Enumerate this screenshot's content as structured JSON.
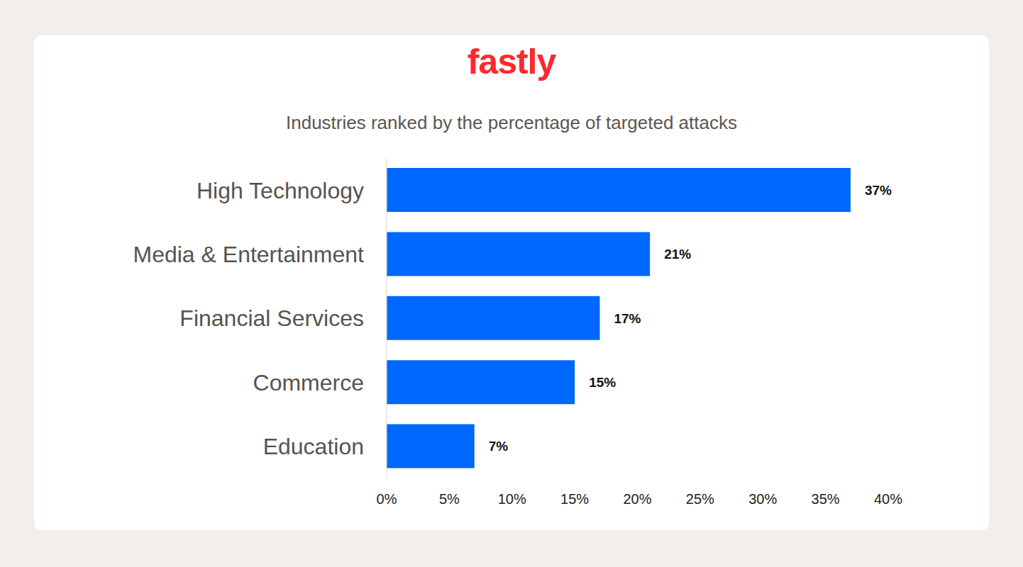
{
  "logo": "fastly",
  "chart_data": {
    "type": "bar",
    "title": "Industries ranked by the percentage of targeted attacks",
    "orientation": "horizontal",
    "categories": [
      "High Technology",
      "Media & Entertainment",
      "Financial Services",
      "Commerce",
      "Education"
    ],
    "values": [
      37,
      21,
      17,
      15,
      7
    ],
    "value_labels": [
      "37%",
      "21%",
      "17%",
      "15%",
      "7%"
    ],
    "data_labels": true,
    "color": "#0068ff",
    "grid": false,
    "xlim": [
      0,
      40
    ],
    "xticks": [
      {
        "value": 0,
        "label": "0%"
      },
      {
        "value": 5,
        "label": "5%"
      },
      {
        "value": 10,
        "label": "10%"
      },
      {
        "value": 15,
        "label": "15%"
      },
      {
        "value": 20,
        "label": "20%"
      },
      {
        "value": 25,
        "label": "25%"
      },
      {
        "value": 30,
        "label": "30%"
      },
      {
        "value": 35,
        "label": "35%"
      },
      {
        "value": 40,
        "label": "40%"
      }
    ]
  }
}
